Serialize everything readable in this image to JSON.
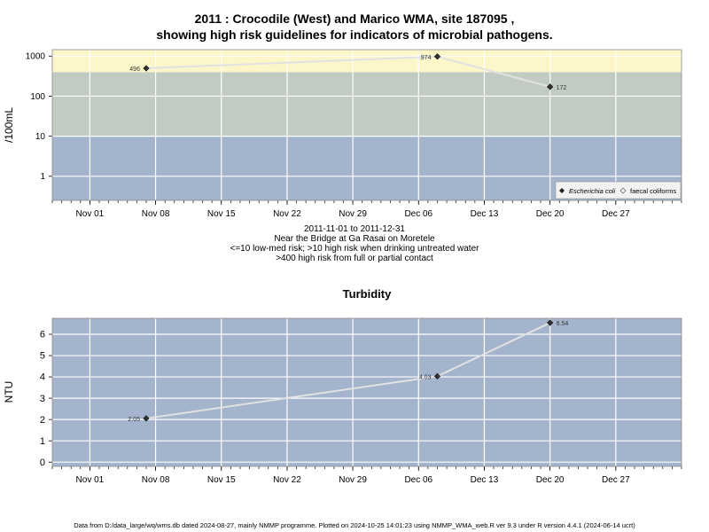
{
  "header": {
    "title_line1": "2011 : Crocodile (West) and Marico WMA, site 187095 ,",
    "title_line2": "showing high risk guidelines for indicators of microbial pathogens."
  },
  "info": {
    "line1": "2011-11-01 to 2011-12-31",
    "line2": "Near the Bridge at Ga Rasai on Moretele",
    "line3": "<=10 low-med risk; >10 high risk when drinking untreated water",
    "line4": ">400 high risk from full or partial contact"
  },
  "footer": {
    "text": "Data from D:/data_large/wq/wms.db dated 2024-08-27, mainly NMMP programme. Plotted on 2024-10-25 14:01:23 using NMMP_WMA_web.R ver 9.3 under R version 4.4.1 (2024-06-14 ucrt)"
  },
  "colors": {
    "band_low": "#a3b4cc",
    "band_mid": "#c2cbc2",
    "band_high": "#fdf6c9",
    "turbidity_bg": "#a3b4cc",
    "line": "#e2e2e2",
    "point": "#333333"
  },
  "chart_data": [
    {
      "type": "line",
      "title": "",
      "ylabel": "/100mL",
      "xlabel": "",
      "y_scale": "log",
      "ylim": [
        0.25,
        1450
      ],
      "xlim": [
        "2011-10-28",
        "2012-01-03"
      ],
      "x_ticks": [
        "Nov 01",
        "Nov 08",
        "Nov 15",
        "Nov 22",
        "Nov 29",
        "Dec 06",
        "Dec 13",
        "Dec 20",
        "Dec 27"
      ],
      "x_tick_dates": [
        "2011-11-01",
        "2011-11-08",
        "2011-11-15",
        "2011-11-22",
        "2011-11-29",
        "2011-12-06",
        "2011-12-13",
        "2011-12-20",
        "2011-12-27"
      ],
      "y_ticks": [
        "1",
        "10",
        "100",
        "1000"
      ],
      "y_tick_values": [
        1,
        10,
        100,
        1000
      ],
      "grid": true,
      "bands": [
        {
          "from": 0.25,
          "to": 10
        },
        {
          "from": 10,
          "to": 400
        },
        {
          "from": 400,
          "to": 1450
        }
      ],
      "legend": {
        "placement": "bottom-right",
        "entries": [
          "Escherichia coli",
          "faecal coliforms"
        ]
      },
      "series": [
        {
          "name": "Escherichia coli",
          "x": [
            "2011-11-07",
            "2011-12-08",
            "2011-12-20"
          ],
          "values": [
            496,
            974,
            172
          ],
          "labels": [
            "496",
            "974",
            "172"
          ]
        }
      ]
    },
    {
      "type": "line",
      "title": "Turbidity",
      "ylabel": "NTU",
      "xlabel": "",
      "ylim": [
        -0.2,
        6.75
      ],
      "xlim": [
        "2011-10-28",
        "2012-01-03"
      ],
      "x_ticks": [
        "Nov 01",
        "Nov 08",
        "Nov 15",
        "Nov 22",
        "Nov 29",
        "Dec 06",
        "Dec 13",
        "Dec 20",
        "Dec 27"
      ],
      "x_tick_dates": [
        "2011-11-01",
        "2011-11-08",
        "2011-11-15",
        "2011-11-22",
        "2011-11-29",
        "2011-12-06",
        "2011-12-13",
        "2011-12-20",
        "2011-12-27"
      ],
      "y_ticks": [
        "0",
        "1",
        "2",
        "3",
        "4",
        "5",
        "6"
      ],
      "y_tick_values": [
        0,
        1,
        2,
        3,
        4,
        5,
        6
      ],
      "grid": true,
      "series": [
        {
          "x": [
            "2011-11-07",
            "2011-12-08",
            "2011-12-20"
          ],
          "values": [
            2.05,
            4.03,
            6.54
          ],
          "labels": [
            "2.05",
            "4.03",
            "6.54"
          ]
        }
      ]
    }
  ]
}
